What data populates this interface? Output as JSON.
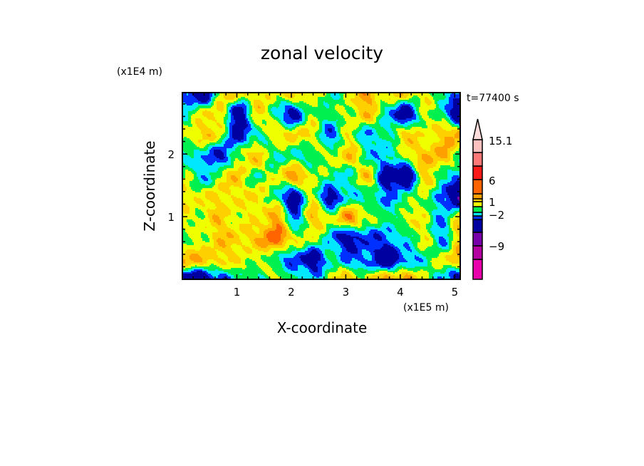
{
  "chart_data": {
    "type": "heatmap",
    "title": "zonal velocity",
    "xlabel": "X-coordinate",
    "ylabel": "Z-coordinate",
    "x_unit": "(x1E5 m)",
    "y_unit": "(x1E4 m)",
    "annotation": "t=77400 s",
    "xlim": [
      0.0,
      5.1
    ],
    "ylim": [
      0.0,
      2.98
    ],
    "x_ticks": [
      1,
      2,
      3,
      4,
      5
    ],
    "x_tick_labels": [
      "1",
      "2",
      "3",
      "4",
      "5"
    ],
    "y_ticks": [
      1,
      2
    ],
    "y_tick_labels": [
      "1",
      "2"
    ],
    "colorbar": {
      "levels": [
        -12,
        -9,
        -6,
        -3,
        -2,
        -1,
        0,
        1,
        2,
        3,
        6,
        9,
        12,
        15.1
      ],
      "colors": [
        "#e800aa",
        "#b400a0",
        "#7800a8",
        "#0000a0",
        "#0030ff",
        "#00e8ff",
        "#00f050",
        "#f0ff00",
        "#ffd000",
        "#ffa000",
        "#ff6400",
        "#ff1a1a",
        "#ff7878",
        "#ffc0c0",
        "#ffdcdc"
      ],
      "tick_values": [
        15.1,
        6,
        1,
        -2,
        -9
      ],
      "tick_labels": [
        "15.1",
        "6",
        "1",
        "-2",
        "-9"
      ]
    },
    "field_grid_note_rows_top_to_bottom": "approximate coarse field values",
    "field_grid": [
      [
        -2.5,
        -5,
        0.5,
        1.5,
        0.5,
        0.5,
        1.5,
        0.5,
        -1,
        0.5,
        2.5,
        0.5,
        1.5,
        0.5,
        -1,
        -2.5
      ],
      [
        -1,
        0.5,
        1.5,
        -5,
        1.5,
        -1,
        -4,
        0.5,
        -1,
        0.5,
        1.5,
        -1,
        -5,
        0.5,
        -1,
        -5
      ],
      [
        0.5,
        1.5,
        0.5,
        -4,
        -1,
        0.5,
        1.5,
        0.5,
        -2.5,
        0.5,
        -2,
        -1,
        1.5,
        0.5,
        1.5,
        2.5
      ],
      [
        -2,
        -1,
        -4,
        0.5,
        1.5,
        -1,
        -1,
        -1,
        0.5,
        1.5,
        -1,
        -2,
        0.5,
        1.5,
        2.5,
        -1
      ],
      [
        0.5,
        -2,
        0.5,
        1.5,
        -1,
        0.5,
        2.5,
        0.5,
        -1,
        -1,
        1.5,
        -4,
        -5,
        1.5,
        -1,
        -2
      ],
      [
        1.5,
        0.5,
        1.5,
        0.5,
        1.5,
        -1,
        -4,
        0.5,
        -4,
        -1,
        -1,
        -2,
        -1,
        0.5,
        -2.5,
        -6
      ],
      [
        0.5,
        0.5,
        1.5,
        0.5,
        0.5,
        2.5,
        -2.5,
        1.5,
        0.5,
        2.5,
        0.5,
        -1,
        0.5,
        0.5,
        -2,
        1.5
      ],
      [
        -1,
        0.5,
        1.5,
        1.5,
        1.5,
        4,
        0.5,
        0.5,
        -2,
        -4,
        -2.5,
        -2.5,
        -1,
        0.5,
        -2,
        1.5
      ],
      [
        2.5,
        1.5,
        1.5,
        0.5,
        0.5,
        -1,
        -2.5,
        -4,
        -1,
        -2,
        -2.5,
        -5,
        -2.5,
        -1,
        0.5,
        2.5
      ],
      [
        -4,
        -5,
        -2.5,
        -1,
        -1,
        0.5,
        -1,
        -2,
        0.5,
        1.5,
        0.5,
        2.5,
        2.5,
        0.5,
        -2,
        -4
      ]
    ]
  }
}
